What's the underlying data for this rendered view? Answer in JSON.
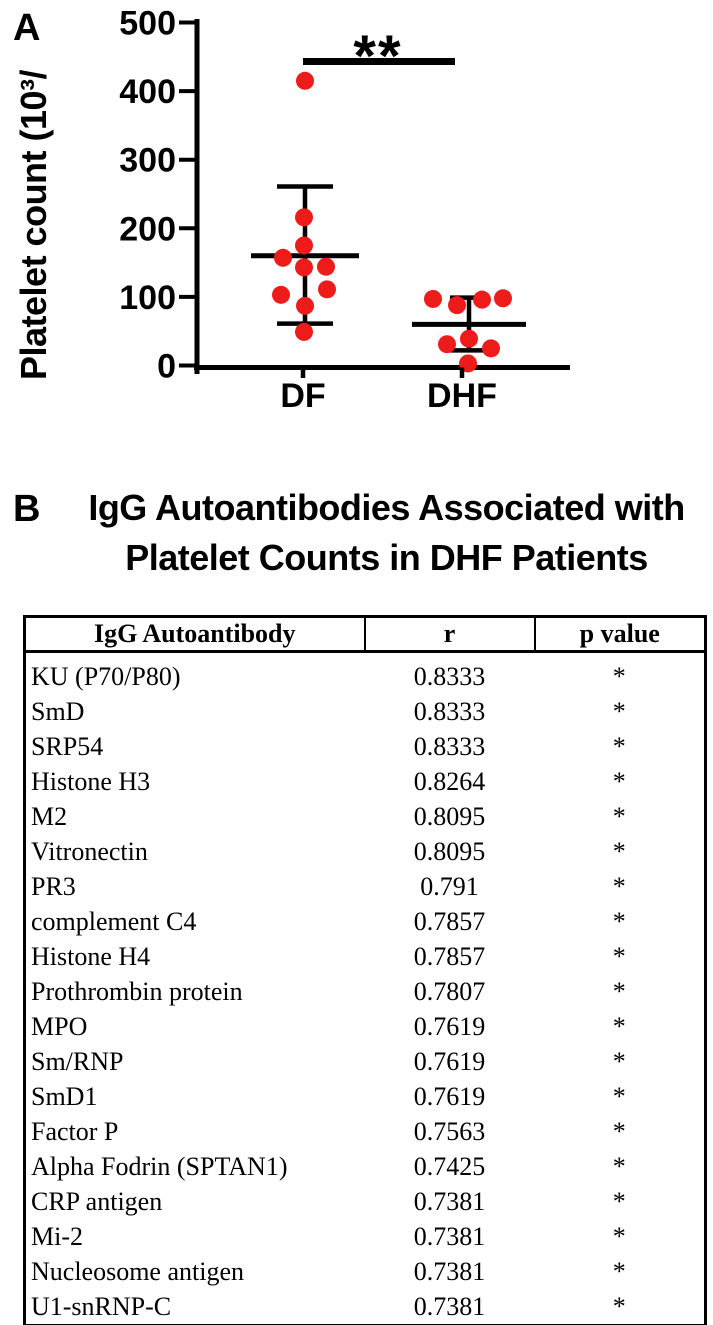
{
  "panelA": {
    "label": "A"
  },
  "chart_data": {
    "type": "scatter",
    "title": "",
    "xlabel": "",
    "ylabel": "Platelet count  (10³/",
    "ylim": [
      0,
      500
    ],
    "yticks": [
      0,
      100,
      200,
      300,
      400,
      500
    ],
    "categories": [
      "DF",
      "DHF"
    ],
    "grid": false,
    "marker_color": "#ee1b1b",
    "significance": {
      "label": "**",
      "between": [
        "DF",
        "DHF"
      ]
    },
    "series": [
      {
        "name": "DF",
        "points": [
          [
            415,
            0
          ],
          [
            216,
            -1
          ],
          [
            175,
            -1
          ],
          [
            157,
            -22
          ],
          [
            143,
            -1
          ],
          [
            144,
            21
          ],
          [
            111,
            22
          ],
          [
            103,
            -24
          ],
          [
            87,
            0
          ],
          [
            49,
            -1
          ]
        ],
        "mean": 160,
        "upper": 261,
        "lower": 61
      },
      {
        "name": "DHF",
        "points": [
          [
            97,
            -36
          ],
          [
            88,
            -12
          ],
          [
            96,
            13
          ],
          [
            98,
            34
          ],
          [
            39,
            0
          ],
          [
            31,
            -22
          ],
          [
            25,
            22
          ],
          [
            3,
            -1
          ]
        ],
        "mean": 60,
        "upper": 99,
        "lower": 22
      }
    ]
  },
  "panelB": {
    "label": "B",
    "title_line1": "IgG Autoantibodies Associated with",
    "title_line2": "Platelet Counts in DHF Patients",
    "table": {
      "headers": [
        "IgG Autoantibody",
        "r",
        "p value"
      ],
      "rows": [
        [
          "KU (P70/P80)",
          "0.8333",
          "*"
        ],
        [
          "SmD",
          "0.8333",
          "*"
        ],
        [
          "SRP54",
          "0.8333",
          "*"
        ],
        [
          "Histone H3",
          "0.8264",
          "*"
        ],
        [
          "M2",
          "0.8095",
          "*"
        ],
        [
          "Vitronectin",
          "0.8095",
          "*"
        ],
        [
          "PR3",
          "0.791",
          "*"
        ],
        [
          "complement C4",
          "0.7857",
          "*"
        ],
        [
          "Histone H4",
          "0.7857",
          "*"
        ],
        [
          "Prothrombin protein",
          "0.7807",
          "*"
        ],
        [
          "MPO",
          "0.7619",
          "*"
        ],
        [
          "Sm/RNP",
          "0.7619",
          "*"
        ],
        [
          "SmD1",
          "0.7619",
          "*"
        ],
        [
          "Factor P",
          "0.7563",
          "*"
        ],
        [
          "Alpha Fodrin (SPTAN1)",
          "0.7425",
          "*"
        ],
        [
          "CRP antigen",
          "0.7381",
          "*"
        ],
        [
          "Mi-2",
          "0.7381",
          "*"
        ],
        [
          "Nucleosome antigen",
          "0.7381",
          "*"
        ],
        [
          "U1-snRNP-C",
          "0.7381",
          "*"
        ]
      ]
    }
  }
}
